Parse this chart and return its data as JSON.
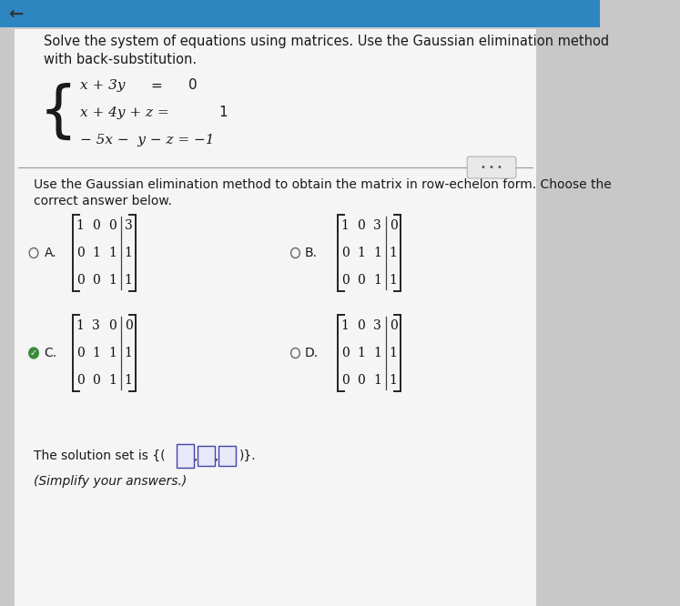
{
  "bg_color": "#c8c8c8",
  "panel_color": "#f5f5f5",
  "top_bar_color": "#2e86c1",
  "title_text1": "Solve the system of equations using matrices. Use the Gaussian elimination method",
  "title_text2": "with back-substitution.",
  "eq1": "x + 3y        =  0",
  "eq2": "x + 4y + z =  1",
  "eq3": "- 5x -  y - z = -1",
  "mid_instruction1": "Use the Gaussian elimination method to obtain the matrix in row-echelon form. Choose the",
  "mid_instruction2": "correct answer below.",
  "option_A_matrix": [
    [
      1,
      0,
      0,
      3
    ],
    [
      0,
      1,
      1,
      1
    ],
    [
      0,
      0,
      1,
      1
    ]
  ],
  "option_B_matrix": [
    [
      1,
      0,
      3,
      0
    ],
    [
      0,
      1,
      1,
      1
    ],
    [
      0,
      0,
      1,
      1
    ]
  ],
  "option_C_matrix": [
    [
      1,
      3,
      0,
      0
    ],
    [
      0,
      1,
      1,
      1
    ],
    [
      0,
      0,
      1,
      1
    ]
  ],
  "option_D_matrix": [
    [
      1,
      0,
      3,
      0
    ],
    [
      0,
      1,
      1,
      1
    ],
    [
      0,
      0,
      1,
      1
    ]
  ],
  "correct_option": "C",
  "solution_text1": "The solution set is {(",
  "solution_text2": ")}.",
  "solution_text3": "(Simplify your answers.)",
  "text_color": "#1a1a1a",
  "matrix_text_color": "#111111",
  "divider_color": "#999999",
  "font_size_title": 10.5,
  "font_size_body": 10,
  "font_size_matrix": 10,
  "font_size_solution": 10
}
